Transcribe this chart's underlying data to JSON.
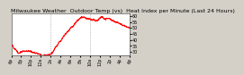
{
  "title": "Milwaukee Weather  Outdoor Temp (vs)  Heat Index per Minute (Last 24 Hours)",
  "line_color": "#ff0000",
  "bg_color": "#d4d0c8",
  "plot_bg": "#ffffff",
  "tick_color": "#000000",
  "ylim": [
    27,
    62
  ],
  "yticks": [
    30,
    35,
    40,
    45,
    50,
    55,
    60
  ],
  "vline_positions": [
    480,
    960
  ],
  "xtick_labels": [
    "6p",
    "8p",
    "10p",
    "12a",
    "2a",
    "4a",
    "6a",
    "8a",
    "10a",
    "12p",
    "2p",
    "4p",
    "6p"
  ],
  "xtick_positions": [
    0,
    120,
    240,
    360,
    480,
    600,
    720,
    840,
    960,
    1080,
    1200,
    1320,
    1439
  ],
  "title_fontsize": 4.5,
  "tick_fontsize": 3.5,
  "linewidth": 0.7,
  "seed": 12,
  "phase1_end": 80,
  "phase1_start": 36,
  "phase1_min": 29,
  "flat_end": 500,
  "flat_val": 29,
  "rise_end": 900,
  "rise_peak": 59,
  "end_val": 50
}
